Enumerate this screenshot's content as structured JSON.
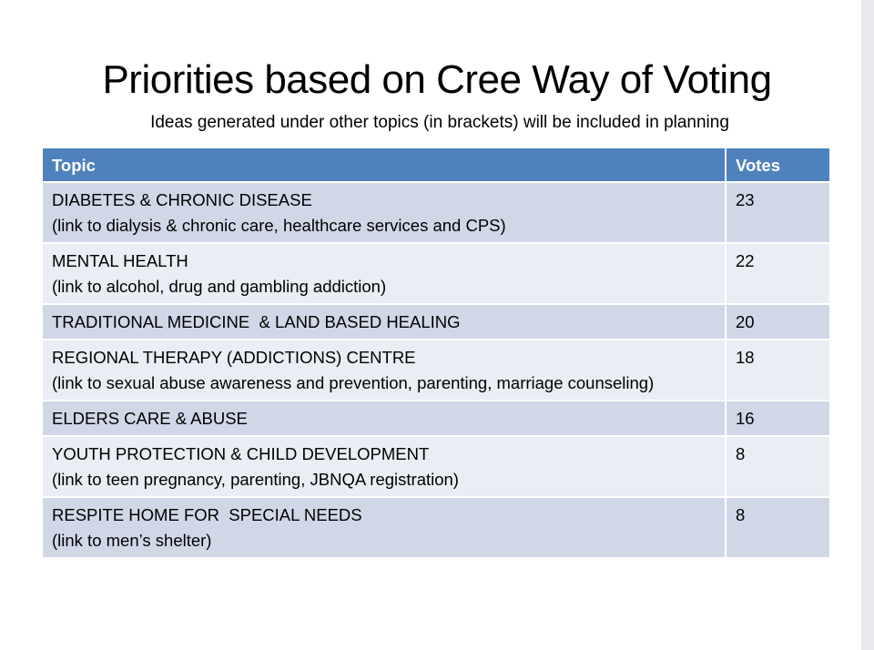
{
  "title": "Priorities based on Cree Way of Voting",
  "subtitle": "Ideas generated under other topics (in brackets) will be included in planning",
  "table": {
    "headers": {
      "topic": "Topic",
      "votes": "Votes"
    },
    "rows": [
      {
        "topic": "DIABETES & CHRONIC DISEASE",
        "detail": "(link to dialysis & chronic care, healthcare services and CPS)",
        "votes": "23"
      },
      {
        "topic": "MENTAL HEALTH",
        "detail": "(link to alcohol, drug and gambling addiction)",
        "votes": "22"
      },
      {
        "topic": "TRADITIONAL MEDICINE  & LAND BASED HEALING",
        "detail": "",
        "votes": "20"
      },
      {
        "topic": "REGIONAL THERAPY (ADDICTIONS) CENTRE",
        "detail": "(link to sexual abuse awareness and prevention, parenting, marriage counseling)",
        "votes": "18"
      },
      {
        "topic": "ELDERS CARE & ABUSE",
        "detail": "",
        "votes": "16"
      },
      {
        "topic": "YOUTH PROTECTION & CHILD DEVELOPMENT",
        "detail": "(link to teen pregnancy, parenting, JBNQA registration)",
        "votes": "8"
      },
      {
        "topic": "RESPITE HOME FOR  SPECIAL NEEDS",
        "detail": "(link to men’s shelter)",
        "votes": "8"
      }
    ]
  },
  "colors": {
    "header_bg": "#4f81bd",
    "row_dark": "#d0d8e8",
    "row_light": "#e9edf4"
  }
}
